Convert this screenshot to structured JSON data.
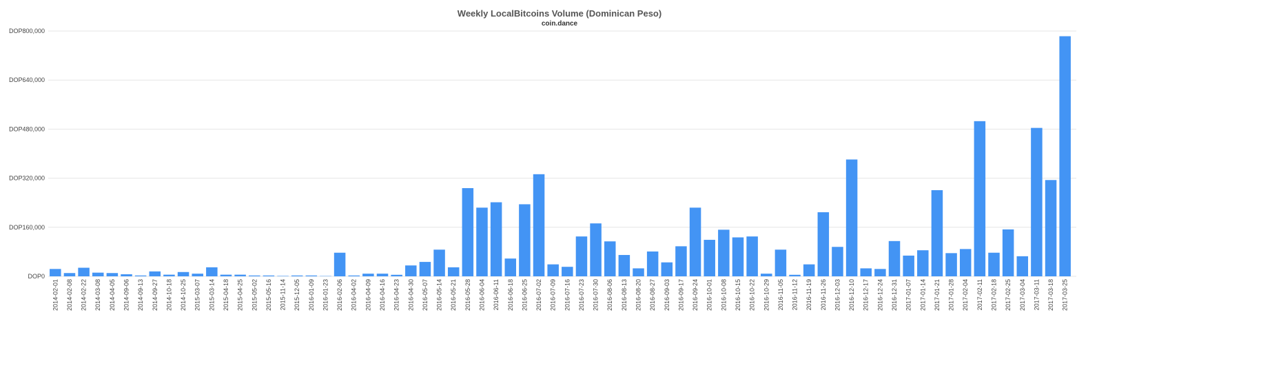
{
  "chart_data": {
    "type": "bar",
    "title": "Weekly LocalBitcoins Volume (Dominican Peso)",
    "subtitle": "coin.dance",
    "xlabel": "",
    "ylabel": "",
    "ylim": [
      0,
      800000
    ],
    "yticks": [
      0,
      160000,
      320000,
      480000,
      640000,
      800000
    ],
    "ytick_labels": [
      "DOP0",
      "DOP160,000",
      "DOP320,000",
      "DOP480,000",
      "DOP640,000",
      "DOP800,000"
    ],
    "grid": true,
    "legend": "none",
    "bar_color": "#4394f4",
    "categories": [
      "2014-02-01",
      "2014-02-08",
      "2014-02-22",
      "2014-03-08",
      "2014-04-05",
      "2014-09-06",
      "2014-09-13",
      "2014-09-27",
      "2014-10-18",
      "2014-10-25",
      "2015-03-07",
      "2015-03-14",
      "2015-04-18",
      "2015-04-25",
      "2015-05-02",
      "2015-05-16",
      "2015-11-14",
      "2015-12-05",
      "2016-01-09",
      "2016-01-23",
      "2016-02-06",
      "2016-04-02",
      "2016-04-09",
      "2016-04-16",
      "2016-04-23",
      "2016-04-30",
      "2016-05-07",
      "2016-05-14",
      "2016-05-21",
      "2016-05-28",
      "2016-06-04",
      "2016-06-11",
      "2016-06-18",
      "2016-06-25",
      "2016-07-02",
      "2016-07-09",
      "2016-07-16",
      "2016-07-23",
      "2016-07-30",
      "2016-08-06",
      "2016-08-13",
      "2016-08-20",
      "2016-08-27",
      "2016-09-03",
      "2016-09-17",
      "2016-09-24",
      "2016-10-01",
      "2016-10-08",
      "2016-10-15",
      "2016-10-22",
      "2016-10-29",
      "2016-11-05",
      "2016-11-12",
      "2016-11-19",
      "2016-11-26",
      "2016-12-03",
      "2016-12-10",
      "2016-12-17",
      "2016-12-24",
      "2016-12-31",
      "2017-01-07",
      "2017-01-14",
      "2017-01-21",
      "2017-01-28",
      "2017-02-04",
      "2017-02-11",
      "2017-02-18",
      "2017-02-25",
      "2017-03-04",
      "2017-03-11",
      "2017-03-18",
      "2017-03-25"
    ],
    "values": [
      24000,
      10700,
      28000,
      12000,
      10700,
      6700,
      2700,
      16000,
      5400,
      14000,
      8700,
      29400,
      5400,
      5400,
      2700,
      2700,
      1300,
      2700,
      2700,
      1000,
      77000,
      2700,
      8700,
      8700,
      5000,
      35500,
      47000,
      87000,
      29400,
      287600,
      224000,
      241500,
      58000,
      235000,
      333000,
      39000,
      31000,
      130000,
      172600,
      114000,
      69600,
      26000,
      81000,
      45500,
      98000,
      224000,
      119000,
      152000,
      127000,
      130000,
      8700,
      87000,
      5000,
      39000,
      209000,
      96000,
      381000,
      26000,
      24000,
      115000,
      67600,
      85000,
      281000,
      75600,
      89000,
      506000,
      77000,
      153000,
      65500,
      484000,
      314000,
      783000
    ]
  }
}
